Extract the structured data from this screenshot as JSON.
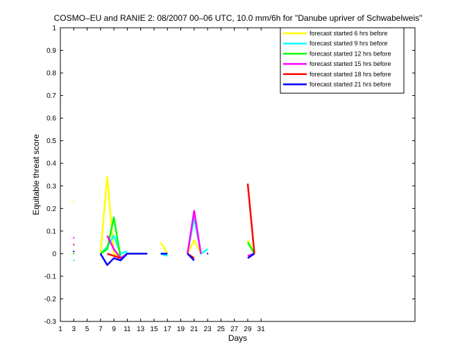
{
  "chart_data": {
    "type": "line",
    "title": "COSMO–EU and RANIE 2: 08/2007 00–06 UTC, 10.0 mm/6h for \"Danube upriver of Schwabelweis\"",
    "xlabel": "Days",
    "ylabel": "Equitable threat score",
    "xlim": [
      1,
      54
    ],
    "ylim": [
      -0.3,
      1
    ],
    "xticks": [
      1,
      3,
      5,
      7,
      9,
      11,
      13,
      15,
      17,
      19,
      21,
      23,
      25,
      27,
      29,
      31
    ],
    "yticks": [
      -0.3,
      -0.2,
      -0.1,
      0,
      0.1,
      0.2,
      0.3,
      0.4,
      0.5,
      0.6,
      0.7,
      0.8,
      0.9,
      1
    ],
    "legend_position": "top-right",
    "series": [
      {
        "name": "forecast started 6 hrs before",
        "color": "#ffff00",
        "segments": [
          [
            [
              3,
              0.23
            ]
          ],
          [
            [
              7,
              0.0
            ],
            [
              8,
              0.34
            ],
            [
              9,
              0.0
            ],
            [
              10,
              -0.02
            ],
            [
              11,
              0.0
            ],
            [
              12,
              0.0
            ],
            [
              13,
              0.0
            ]
          ],
          [
            [
              16,
              0.05
            ],
            [
              17,
              0.0
            ]
          ],
          [
            [
              20,
              0.0
            ],
            [
              21,
              0.06
            ],
            [
              22,
              0.0
            ]
          ],
          [
            [
              29,
              0.06
            ],
            [
              30,
              0.0
            ]
          ]
        ]
      },
      {
        "name": "forecast started 9 hrs before",
        "color": "#00ffff",
        "segments": [
          [
            [
              3,
              -0.03
            ]
          ],
          [
            [
              7,
              0.0
            ],
            [
              8,
              0.03
            ],
            [
              9,
              0.08
            ],
            [
              10,
              0.0
            ],
            [
              11,
              0.01
            ]
          ],
          [
            [
              16,
              0.0
            ],
            [
              17,
              -0.01
            ]
          ],
          [
            [
              20,
              0.0
            ],
            [
              21,
              0.16
            ],
            [
              22,
              0.0
            ],
            [
              23,
              0.02
            ]
          ],
          [
            [
              29,
              -0.01
            ],
            [
              30,
              0.0
            ]
          ]
        ]
      },
      {
        "name": "forecast started 12 hrs before",
        "color": "#00ff00",
        "segments": [
          [
            [
              3,
              0.0
            ]
          ],
          [
            [
              7,
              0.0
            ],
            [
              8,
              0.02
            ],
            [
              9,
              0.16
            ],
            [
              10,
              -0.02
            ],
            [
              11,
              0.0
            ]
          ],
          [
            [
              29,
              0.05
            ],
            [
              30,
              0.0
            ]
          ]
        ]
      },
      {
        "name": "forecast started 15 hrs before",
        "color": "#ff00ff",
        "segments": [
          [
            [
              3,
              0.07
            ]
          ],
          [
            [
              8,
              0.08
            ],
            [
              9,
              0.02
            ],
            [
              10,
              -0.02
            ],
            [
              11,
              0.0
            ]
          ],
          [
            [
              20,
              0.0
            ],
            [
              21,
              0.19
            ],
            [
              22,
              0.0
            ]
          ],
          [
            [
              29,
              -0.01
            ],
            [
              30,
              0.0
            ]
          ]
        ]
      },
      {
        "name": "forecast started 18 hrs before",
        "color": "#ff0000",
        "segments": [
          [
            [
              3,
              0.04
            ]
          ],
          [
            [
              8,
              0.0
            ],
            [
              9,
              -0.01
            ],
            [
              10,
              -0.02
            ]
          ],
          [
            [
              20,
              0.0
            ],
            [
              21,
              -0.02
            ]
          ],
          [
            [
              29,
              0.31
            ],
            [
              30,
              0.0
            ]
          ]
        ]
      },
      {
        "name": "forecast started 21 hrs before",
        "color": "#0000ff",
        "segments": [
          [
            [
              3,
              0.01
            ]
          ],
          [
            [
              7,
              0.0
            ],
            [
              8,
              -0.05
            ],
            [
              9,
              -0.02
            ],
            [
              10,
              -0.03
            ],
            [
              11,
              0.0
            ],
            [
              12,
              0.0
            ],
            [
              13,
              0.0
            ],
            [
              14,
              0.0
            ]
          ],
          [
            [
              16,
              0.0
            ],
            [
              17,
              0.0
            ]
          ],
          [
            [
              20,
              0.0
            ],
            [
              21,
              -0.03
            ]
          ],
          [
            [
              23,
              0.0
            ]
          ],
          [
            [
              29,
              -0.02
            ],
            [
              30,
              0.0
            ]
          ]
        ]
      }
    ]
  }
}
